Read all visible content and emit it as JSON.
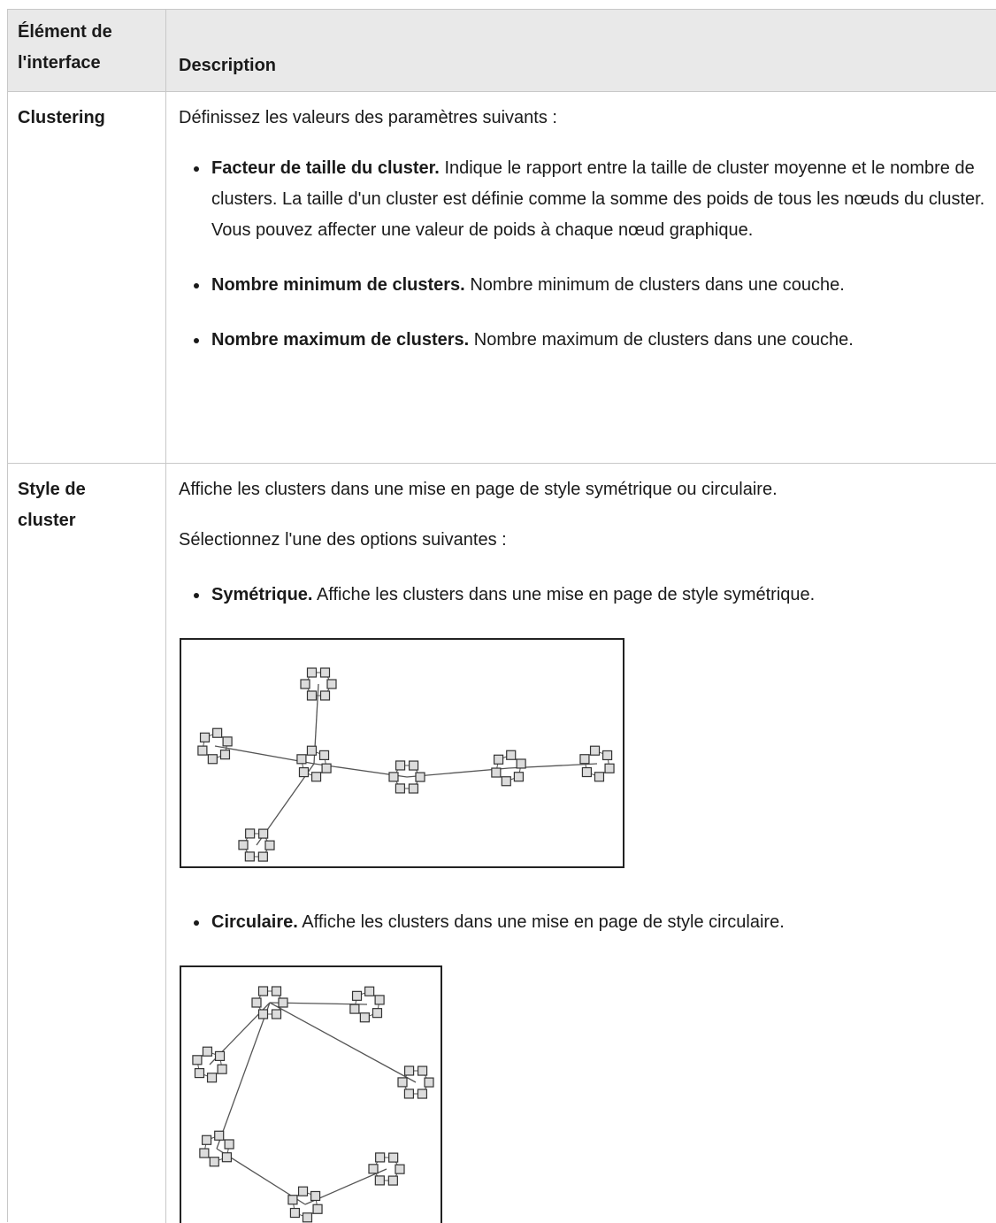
{
  "table": {
    "header": [
      "Élément de l'interface",
      "Description"
    ],
    "rows": [
      {
        "element": "Clustering",
        "paragraphs": [
          "Définissez les valeurs des paramètres suivants :"
        ],
        "bullets": [
          {
            "term": "Facteur de taille du cluster.",
            "text": "Indique le rapport entre la taille de cluster moyenne et le nombre de clusters. La taille d'un cluster est définie comme la somme des poids de tous les nœuds du cluster. Vous pouvez affecter une valeur de poids à chaque nœud graphique."
          },
          {
            "term": "Nombre minimum de clusters.",
            "text": "Nombre minimum de clusters dans une couche."
          },
          {
            "term": "Nombre maximum de clusters.",
            "text": "Nombre maximum de clusters dans une couche."
          }
        ]
      },
      {
        "element": "Style de cluster",
        "paragraphs": [
          "Affiche les clusters dans une mise en page de style symétrique ou circulaire.",
          "Sélectionnez l'une des options suivantes :"
        ],
        "bullets": [
          {
            "term": "Symétrique.",
            "text": "Affiche les clusters dans une mise en page de style symétrique."
          },
          {
            "term": "Circulaire.",
            "text": "Affiche les clusters dans une mise en page de style circulaire."
          }
        ]
      }
    ]
  }
}
